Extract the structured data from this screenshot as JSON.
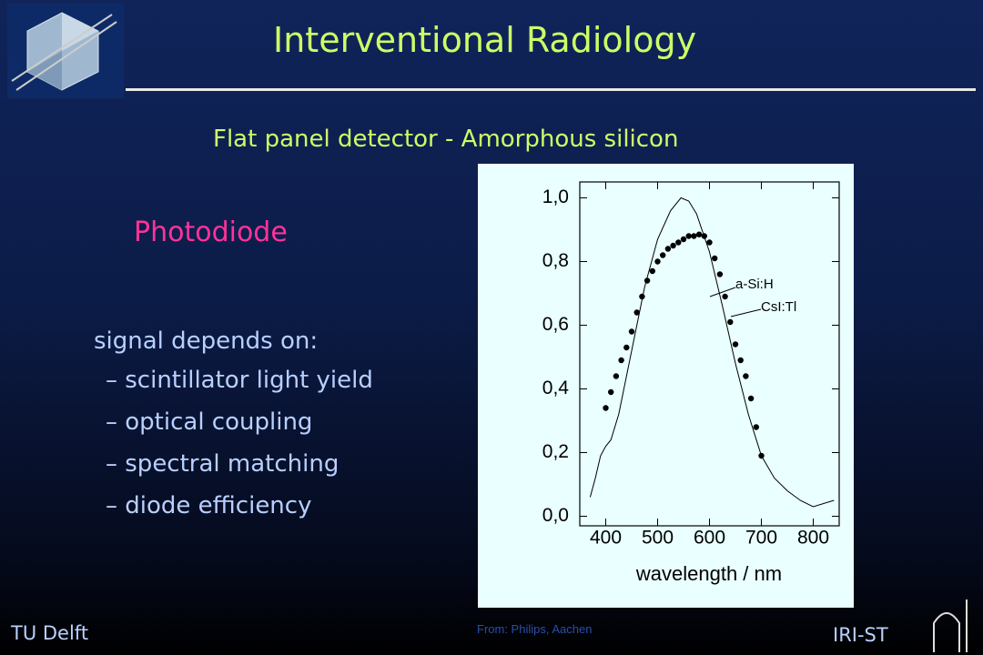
{
  "slide": {
    "title": "Interventional Radiology",
    "subtitle": "Flat panel detector  -  Amorphous silicon",
    "heading": "Photodiode",
    "list_intro": "signal depends on:",
    "items": [
      "–  scintillator light yield",
      "–  optical coupling",
      "–  spectral matching",
      "–  diode efficiency"
    ],
    "footer_left": "TU Delft",
    "footer_right": "IRI-ST",
    "source": "From: Philips, Aachen"
  },
  "chart_data": {
    "type": "line",
    "xlabel": "wavelength / nm",
    "xlim": [
      350,
      850
    ],
    "xticks": [
      400,
      500,
      600,
      700,
      800
    ],
    "ylim": [
      -0.03,
      1.05
    ],
    "yticks": [
      {
        "value": 0,
        "label": "0,0"
      },
      {
        "value": 0.2,
        "label": "0,2"
      },
      {
        "value": 0.4,
        "label": "0,4"
      },
      {
        "value": 0.6,
        "label": "0,6"
      },
      {
        "value": 0.8,
        "label": "0,8"
      },
      {
        "value": 1.0,
        "label": "1,0"
      }
    ],
    "series": [
      {
        "name": "a-Si:H",
        "color": "#000000",
        "markers": true,
        "x": [
          400,
          410,
          420,
          430,
          440,
          450,
          460,
          470,
          480,
          490,
          500,
          510,
          520,
          530,
          540,
          550,
          560,
          570,
          580,
          590,
          600,
          610,
          620,
          630,
          640,
          650,
          660,
          670,
          680,
          690,
          700
        ],
        "values": [
          0.34,
          0.39,
          0.44,
          0.49,
          0.53,
          0.58,
          0.64,
          0.69,
          0.74,
          0.77,
          0.8,
          0.82,
          0.84,
          0.85,
          0.86,
          0.87,
          0.88,
          0.88,
          0.885,
          0.88,
          0.86,
          0.81,
          0.76,
          0.69,
          0.61,
          0.54,
          0.49,
          0.44,
          0.37,
          0.28,
          0.19
        ]
      },
      {
        "name": "CsI:Tl",
        "color": "#000000",
        "markers": false,
        "x": [
          370,
          380,
          390,
          400,
          410,
          425,
          450,
          475,
          500,
          525,
          545,
          560,
          575,
          600,
          625,
          650,
          675,
          700,
          725,
          750,
          775,
          800,
          840
        ],
        "values": [
          0.06,
          0.12,
          0.19,
          0.22,
          0.24,
          0.32,
          0.52,
          0.72,
          0.87,
          0.96,
          1.0,
          0.99,
          0.95,
          0.83,
          0.66,
          0.48,
          0.32,
          0.19,
          0.12,
          0.08,
          0.05,
          0.03,
          0.05
        ]
      }
    ]
  }
}
